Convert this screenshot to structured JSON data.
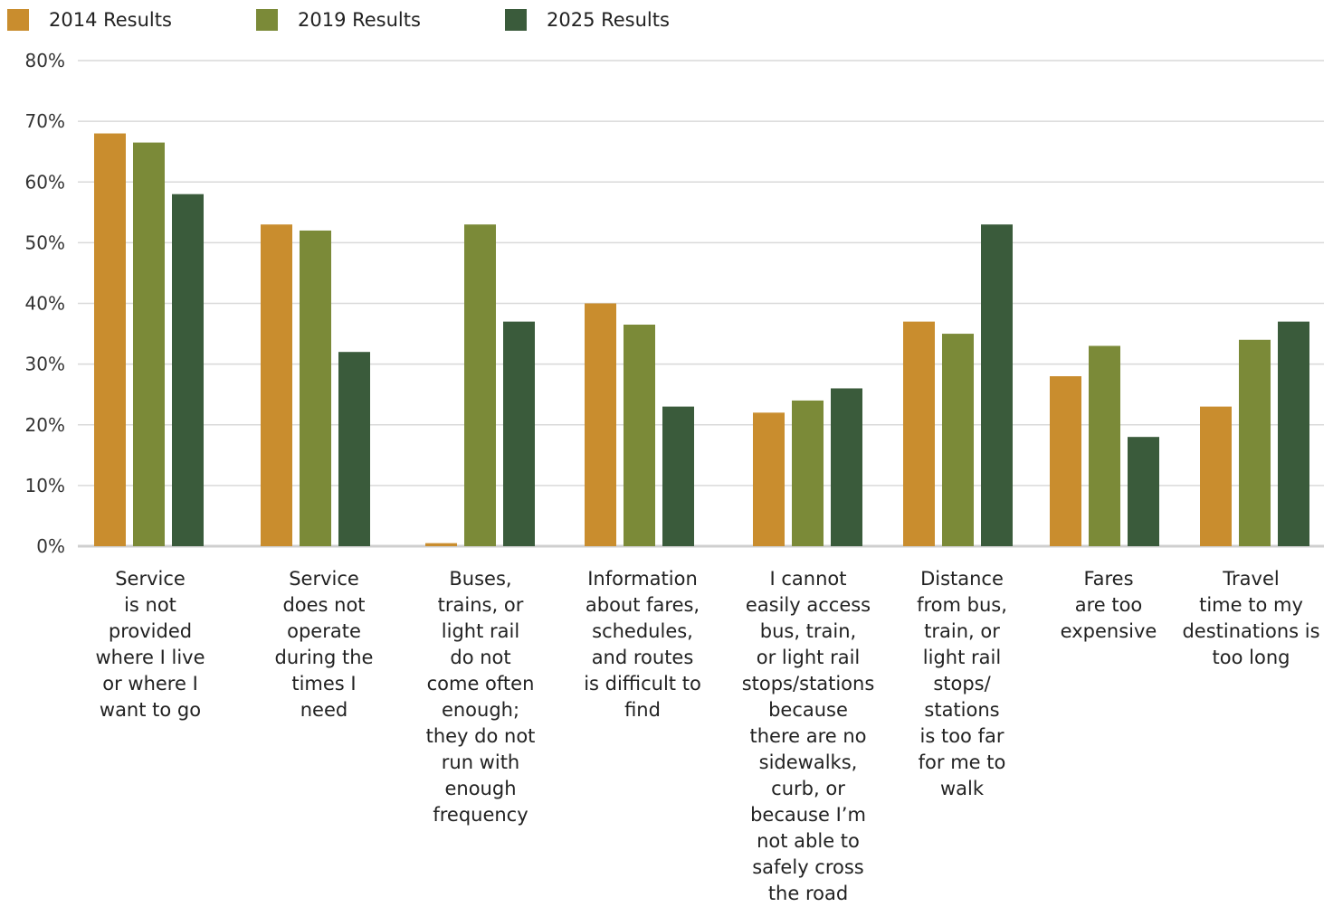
{
  "chart_data": {
    "type": "bar",
    "categories": [
      "Service\nis not\nprovided\nwhere I live\nor where I\nwant to go",
      "Service\ndoes not\noperate\nduring the\ntimes I\nneed",
      "Buses,\ntrains, or\nlight rail\ndo not\ncome often\nenough;\nthey do not\nrun with\nenough\nfrequency",
      "Information\nabout fares,\nschedules,\nand routes\nis difficult to\nfind",
      "I cannot\neasily access\nbus, train,\nor light rail\nstops/stations\nbecause\nthere are no\nsidewalks,\ncurb, or\nbecause I’m\nnot able to\nsafely cross\nthe road",
      "Distance\nfrom bus,\ntrain, or\nlight rail\nstops/\nstations\nis too far\nfor me to\nwalk",
      "Fares\nare too\nexpensive",
      "Travel\ntime to my\ndestinations is\ntoo long"
    ],
    "series": [
      {
        "name": "2014 Results",
        "color": "#C98D2E",
        "values": [
          68,
          53,
          0.5,
          40,
          22,
          37,
          28,
          23
        ]
      },
      {
        "name": "2019 Results",
        "color": "#7B8A38",
        "values": [
          66.5,
          52,
          53,
          36.5,
          24,
          35,
          33,
          34
        ]
      },
      {
        "name": "2025 Results",
        "color": "#3A5B3B",
        "values": [
          58,
          32,
          37,
          23,
          26,
          53,
          18,
          37
        ]
      }
    ],
    "ylim": [
      0,
      80
    ],
    "yticks": [
      "0%",
      "10%",
      "20%",
      "30%",
      "40%",
      "50%",
      "60%",
      "70%",
      "80%"
    ],
    "grid": true,
    "legend_position": "top-left",
    "title": "",
    "xlabel": "",
    "ylabel": ""
  }
}
